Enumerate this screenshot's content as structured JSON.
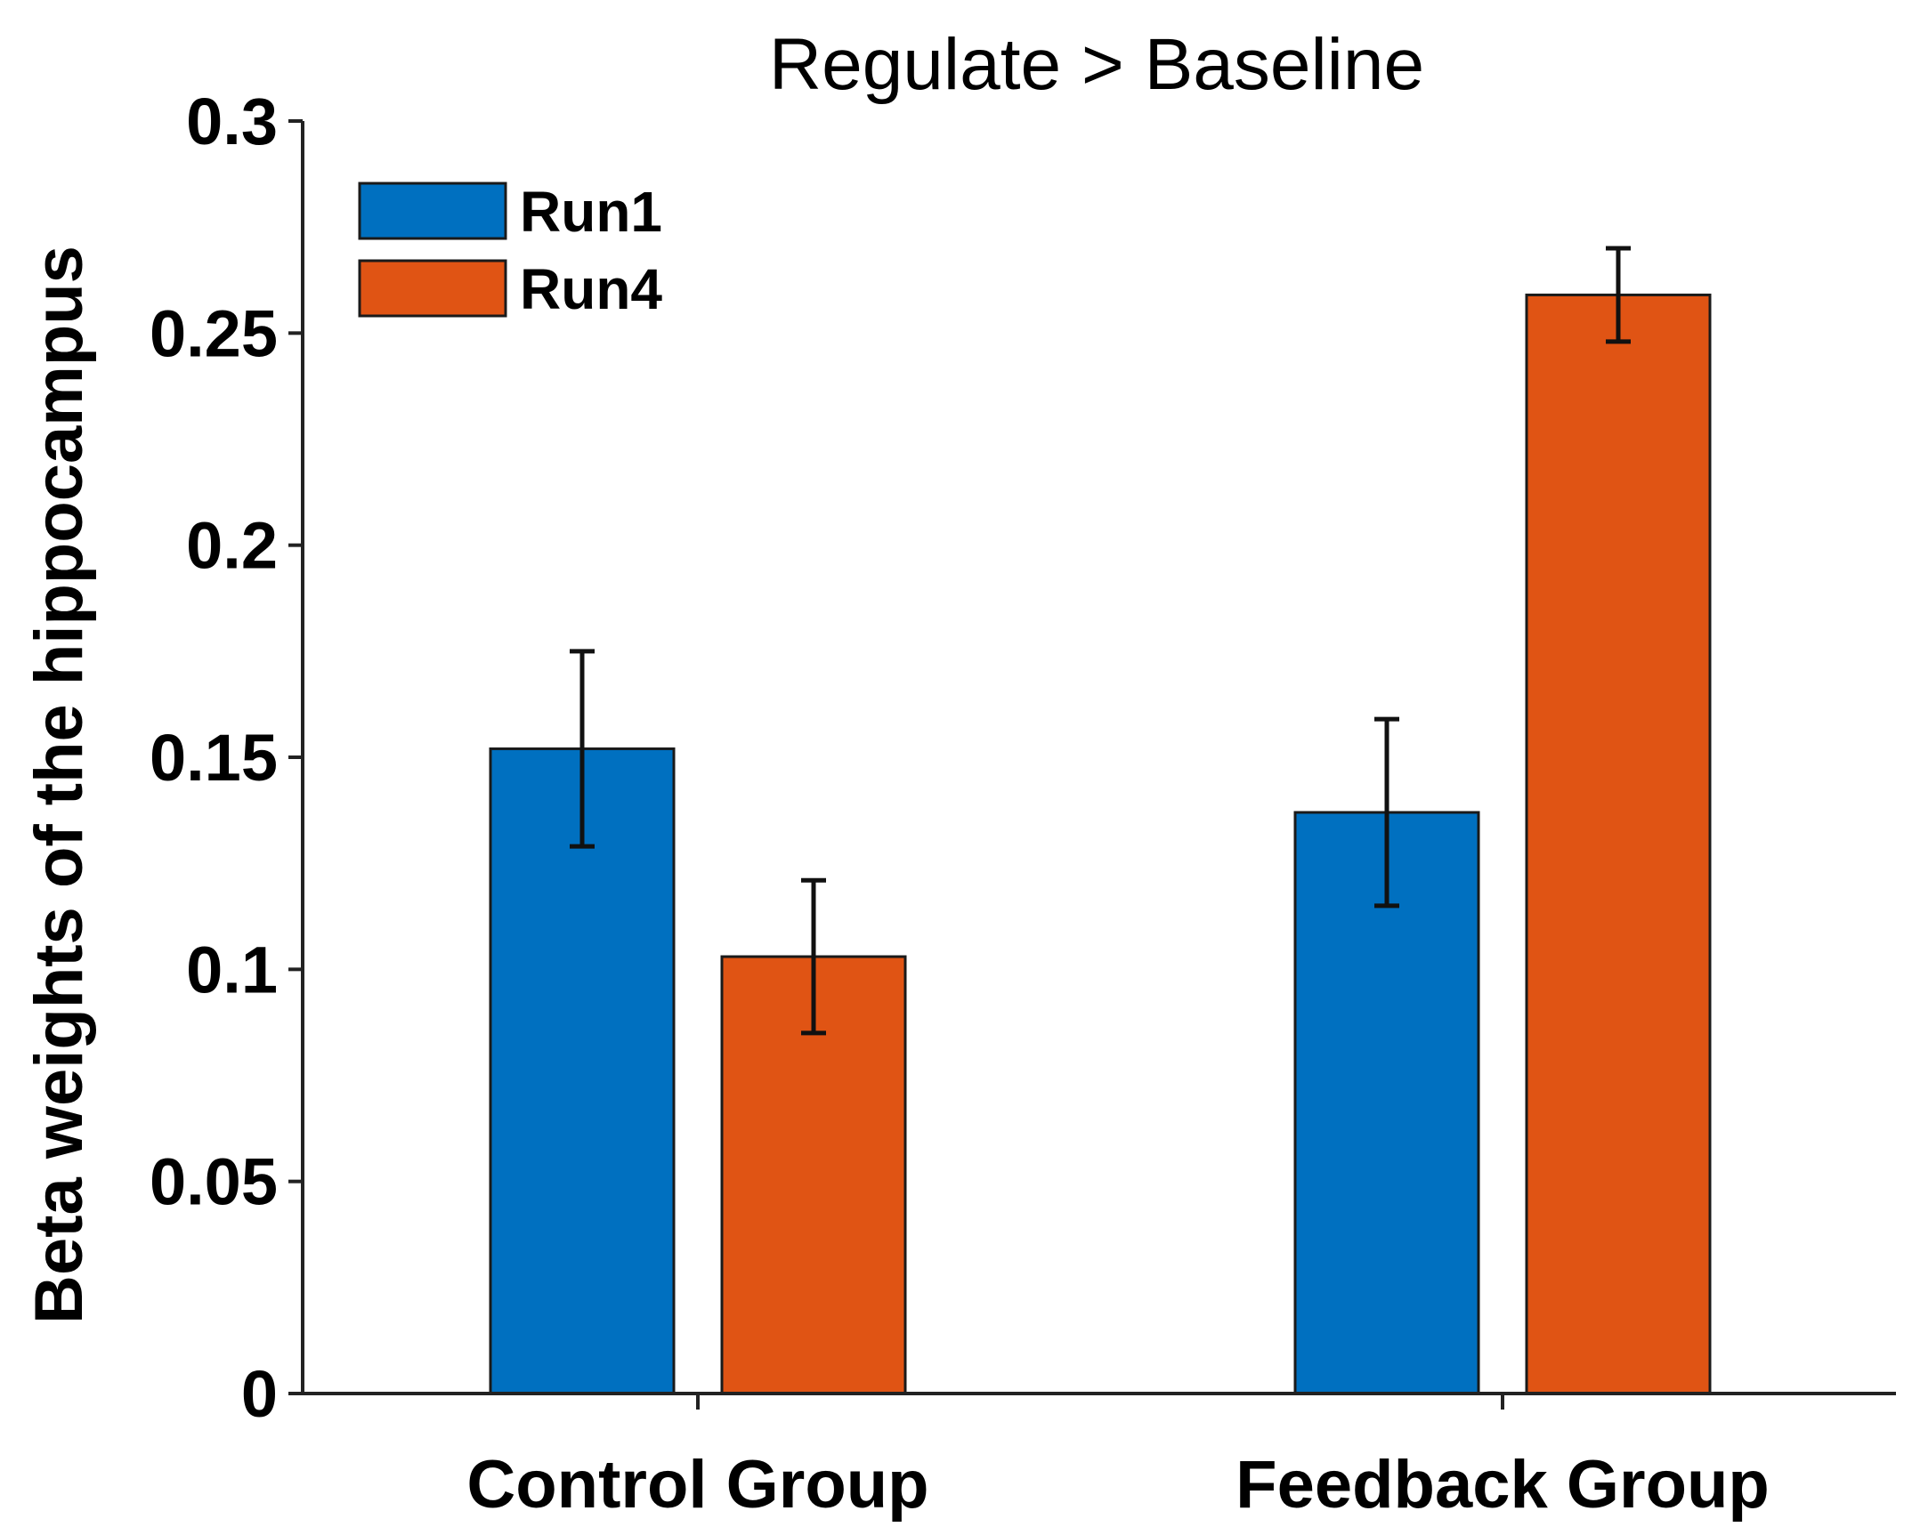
{
  "chart_data": {
    "type": "bar",
    "title": "Regulate > Baseline",
    "xlabel": "",
    "ylabel": "Beta weights of the hippocampus",
    "categories": [
      "Control Group",
      "Feedback Group"
    ],
    "series": [
      {
        "name": "Run1",
        "color": "#0070C0",
        "values": [
          0.152,
          0.137
        ],
        "errors": [
          0.023,
          0.022
        ]
      },
      {
        "name": "Run4",
        "color": "#E05414",
        "values": [
          0.103,
          0.259
        ],
        "errors": [
          0.018,
          0.011
        ]
      }
    ],
    "ylim": [
      0,
      0.3
    ],
    "yticks": [
      0,
      0.05,
      0.1,
      0.15,
      0.2,
      0.25,
      0.3
    ],
    "ytick_labels": [
      "0",
      "0.05",
      "0.1",
      "0.15",
      "0.2",
      "0.25",
      "0.3"
    ],
    "grid": false,
    "legend_position": "top-left"
  }
}
